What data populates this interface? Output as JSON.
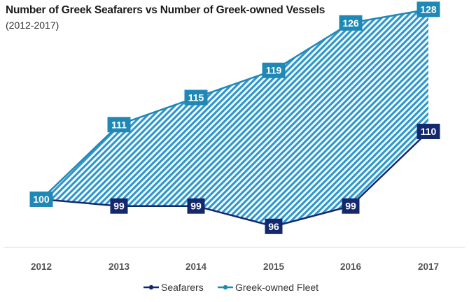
{
  "chart_data": {
    "type": "area",
    "title": "Number of Greek Seafarers vs Number of Greek-owned Vessels",
    "subtitle": "(2012-2017)",
    "categories": [
      "2012",
      "2013",
      "2014",
      "2015",
      "2016",
      "2017"
    ],
    "series": [
      {
        "name": "Seafarers",
        "values": [
          100,
          99,
          99,
          96,
          99,
          110
        ],
        "color": "#14286e"
      },
      {
        "name": "Greek-owned Fleet",
        "values": [
          100,
          111,
          115,
          119,
          126,
          128
        ],
        "color": "#2088b5"
      }
    ],
    "fill": {
      "pattern": "diagonal-dashes",
      "color": "#2c97d1"
    },
    "grid": false,
    "legend_position": "bottom"
  }
}
